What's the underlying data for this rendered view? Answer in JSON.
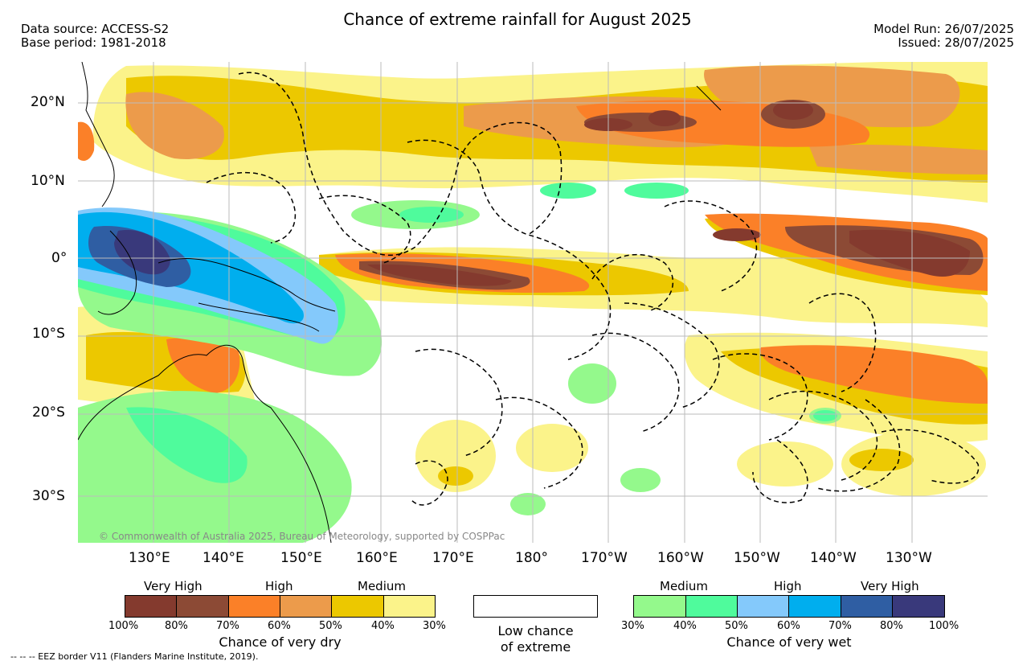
{
  "header": {
    "title": "Chance of extreme rainfall for August 2025",
    "data_source": "Data source: ACCESS-S2",
    "base_period": "Base period: 1981-2018",
    "model_run": "Model Run: 26/07/2025",
    "issued": "Issued: 28/07/2025"
  },
  "axes": {
    "lat_labels": [
      "20°N",
      "10°N",
      "0°",
      "10°S",
      "20°S",
      "30°S"
    ],
    "lon_labels": [
      "130°E",
      "140°E",
      "150°E",
      "160°E",
      "170°E",
      "180°",
      "170°W",
      "160°W",
      "150°W",
      "140°W",
      "130°W"
    ]
  },
  "map": {
    "copyright": "© Commonwealth of Australia 2025, Bureau of Meteorology, supported by COSPPac",
    "colors": {
      "dry_100_80": "#843a2e",
      "dry_80_70": "#8c4a35",
      "dry_70_60": "#fb8028",
      "dry_60_50": "#ec9b4b",
      "dry_50_40": "#ecc800",
      "dry_40_30": "#fbf38a",
      "wet_30_40": "#94f98c",
      "wet_40_50": "#4ffb9c",
      "wet_50_60": "#84c9fb",
      "wet_60_70": "#00aeee",
      "wet_70_80": "#2f5ea3",
      "wet_80_100": "#39397b"
    }
  },
  "legend_dry": {
    "levels": [
      "Very High",
      "High",
      "Medium"
    ],
    "ticks": [
      "100%",
      "80%",
      "70%",
      "60%",
      "50%",
      "40%",
      "30%"
    ],
    "title": "Chance of very dry",
    "colors": [
      "#843a2e",
      "#8c4a35",
      "#fb8028",
      "#ec9b4b",
      "#ecc800",
      "#fbf38a"
    ]
  },
  "legend_low": {
    "line1": "Low chance",
    "line2": "of extreme"
  },
  "legend_wet": {
    "levels": [
      "Medium",
      "High",
      "Very High"
    ],
    "ticks": [
      "30%",
      "40%",
      "50%",
      "60%",
      "70%",
      "80%",
      "100%"
    ],
    "title": "Chance of very wet",
    "colors": [
      "#94f98c",
      "#4ffb9c",
      "#84c9fb",
      "#00aeee",
      "#2f5ea3",
      "#39397b"
    ]
  },
  "footer": {
    "eez_note": "--  --  -- EEZ border V11 (Flanders Marine Institute, 2019)."
  }
}
